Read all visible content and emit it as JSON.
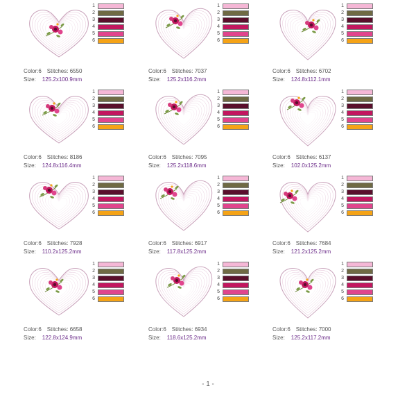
{
  "palette": [
    "#f5b7d6",
    "#6f6a44",
    "#5a0f2c",
    "#c2175f",
    "#e0458d",
    "#f5a316"
  ],
  "designs": [
    {
      "color_label": "Color:",
      "colors": "6",
      "stitches_label": "Stitches:",
      "stitches": "6550",
      "size_label": "Size:",
      "size": "125.2x100.9mm"
    },
    {
      "color_label": "Color:",
      "colors": "6",
      "stitches_label": "Stitches:",
      "stitches": "7037",
      "size_label": "Size:",
      "size": "125.2x116.2mm"
    },
    {
      "color_label": "Color:",
      "colors": "6",
      "stitches_label": "Stitches:",
      "stitches": "6702",
      "size_label": "Size:",
      "size": "124.8x112.1mm"
    },
    {
      "color_label": "Color:",
      "colors": "6",
      "stitches_label": "Stitches:",
      "stitches": "8186",
      "size_label": "Size:",
      "size": "124.8x116.4mm"
    },
    {
      "color_label": "Color:",
      "colors": "6",
      "stitches_label": "Stitches:",
      "stitches": "7095",
      "size_label": "Size:",
      "size": "125.2x118.6mm"
    },
    {
      "color_label": "Color:",
      "colors": "6",
      "stitches_label": "Stitches:",
      "stitches": "6137",
      "size_label": "Size:",
      "size": "102.0x125.2mm"
    },
    {
      "color_label": "Color:",
      "colors": "6",
      "stitches_label": "Stitches:",
      "stitches": "7928",
      "size_label": "Size:",
      "size": "110.2x125.2mm"
    },
    {
      "color_label": "Color:",
      "colors": "6",
      "stitches_label": "Stitches:",
      "stitches": "6917",
      "size_label": "Size:",
      "size": "117.8x125.2mm"
    },
    {
      "color_label": "Color:",
      "colors": "6",
      "stitches_label": "Stitches:",
      "stitches": "7684",
      "size_label": "Size:",
      "size": "121.2x125.2mm"
    },
    {
      "color_label": "Color:",
      "colors": "6",
      "stitches_label": "Stitches:",
      "stitches": "6658",
      "size_label": "Size:",
      "size": "122.8x124.9mm"
    },
    {
      "color_label": "Color:",
      "colors": "6",
      "stitches_label": "Stitches:",
      "stitches": "6934",
      "size_label": "Size:",
      "size": "118.6x125.2mm"
    },
    {
      "color_label": "Color:",
      "colors": "6",
      "stitches_label": "Stitches:",
      "stitches": "7000",
      "size_label": "Size:",
      "size": "125.2x117.2mm"
    }
  ],
  "swatch_numbers": [
    "1",
    "2",
    "3",
    "4",
    "5",
    "6"
  ],
  "page_number": "- 1 -"
}
